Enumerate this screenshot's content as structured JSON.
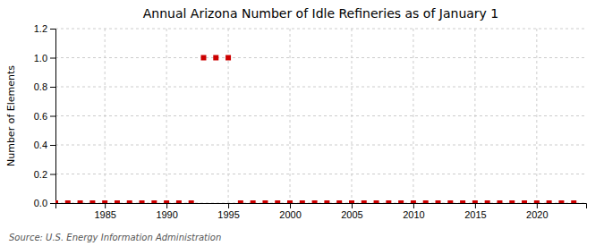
{
  "chart_data": {
    "type": "scatter",
    "title": "Annual Arizona Number of Idle Refineries as of January 1",
    "y_label": "Number of Elements",
    "annotations": [
      "Source: U.S. Energy Information Administration"
    ],
    "x": [
      1981,
      1982,
      1983,
      1984,
      1985,
      1986,
      1987,
      1988,
      1989,
      1990,
      1991,
      1992,
      1993,
      1994,
      1995,
      1996,
      1997,
      1998,
      1999,
      2000,
      2001,
      2002,
      2003,
      2004,
      2005,
      2006,
      2007,
      2008,
      2009,
      2010,
      2011,
      2012,
      2013,
      2014,
      2015,
      2016,
      2017,
      2018,
      2019,
      2020,
      2021,
      2022,
      2023
    ],
    "values": [
      0,
      0,
      0,
      0,
      0,
      0,
      0,
      0,
      0,
      0,
      0,
      0,
      1,
      1,
      1,
      0,
      0,
      0,
      0,
      0,
      0,
      0,
      0,
      0,
      0,
      0,
      0,
      0,
      0,
      0,
      0,
      0,
      0,
      0,
      0,
      0,
      0,
      0,
      0,
      0,
      0,
      0,
      0
    ],
    "color": "#cc0000",
    "marker": "square",
    "xlim": [
      1981,
      2024
    ],
    "ylim": [
      0.0,
      1.2
    ],
    "xticks": [
      1985,
      1990,
      1995,
      2000,
      2005,
      2010,
      2015,
      2020
    ],
    "yticks": [
      {
        "value": 0.0,
        "label": "0.0"
      },
      0.2,
      0.4,
      0.6,
      0.8,
      {
        "value": 1.0,
        "label": "1.0"
      },
      1.2
    ],
    "grid": true
  }
}
